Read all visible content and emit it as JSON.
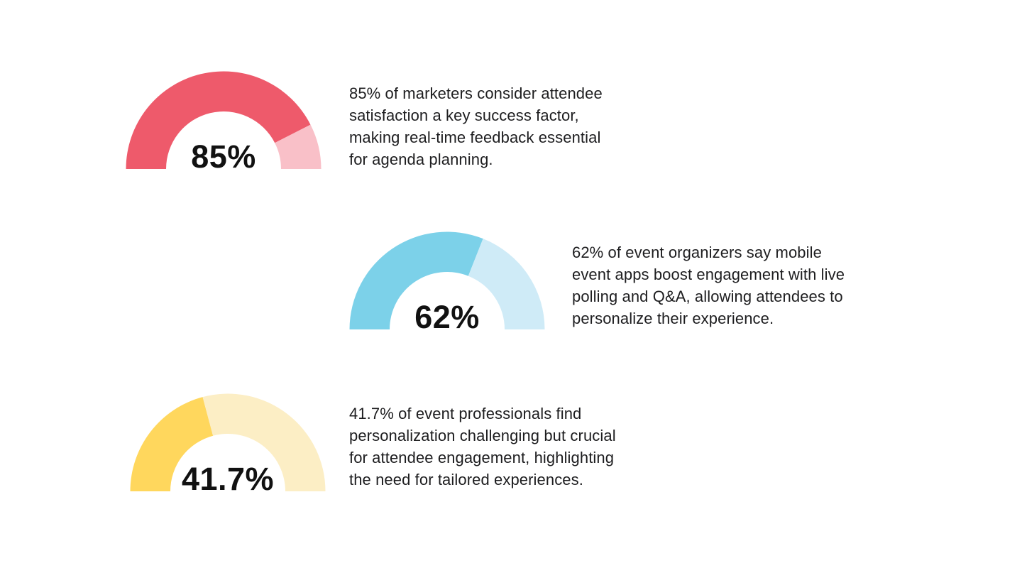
{
  "page": {
    "background_color": "#ffffff",
    "text_color": "#1d1d1f",
    "label_color": "#111111"
  },
  "stats": [
    {
      "percent_label": "85%",
      "percent_value": 85,
      "fill_color": "#ee5a6b",
      "track_color": "#f9c0c8",
      "description_lines": [
        "85% of marketers consider attendee",
        "satisfaction a key success factor,",
        "making real-time feedback essential",
        "for agenda planning."
      ]
    },
    {
      "percent_label": "62%",
      "percent_value": 62,
      "fill_color": "#7cd1e9",
      "track_color": "#cfebf7",
      "description_lines": [
        "62% of event organizers say mobile",
        "event apps boost engagement with live",
        "polling and Q&A, allowing attendees to",
        "personalize their experience."
      ]
    },
    {
      "percent_label": "41.7%",
      "percent_value": 41.7,
      "fill_color": "#ffd75d",
      "track_color": "#fceec5",
      "description_lines": [
        "41.7% of event professionals find",
        "personalization challenging but crucial",
        "for attendee engagement, highlighting",
        "the need for tailored experiences."
      ]
    }
  ],
  "chart_data": [
    {
      "type": "pie",
      "subtype": "half-donut-gauge",
      "value": 85,
      "max": 100,
      "label": "85%",
      "fill_color": "#ee5a6b",
      "remainder_color": "#f9c0c8",
      "annotation": "85% of marketers consider attendee satisfaction a key success factor, making real-time feedback essential for agenda planning.",
      "legend": "none",
      "grid": false
    },
    {
      "type": "pie",
      "subtype": "half-donut-gauge",
      "value": 62,
      "max": 100,
      "label": "62%",
      "fill_color": "#7cd1e9",
      "remainder_color": "#cfebf7",
      "annotation": "62% of event organizers say mobile event apps boost engagement with live polling and Q&A, allowing attendees to personalize their experience.",
      "legend": "none",
      "grid": false
    },
    {
      "type": "pie",
      "subtype": "half-donut-gauge",
      "value": 41.7,
      "max": 100,
      "label": "41.7%",
      "fill_color": "#ffd75d",
      "remainder_color": "#fceec5",
      "annotation": "41.7% of event professionals find personalization challenging but crucial for attendee engagement, highlighting the need for tailored experiences.",
      "legend": "none",
      "grid": false
    }
  ]
}
